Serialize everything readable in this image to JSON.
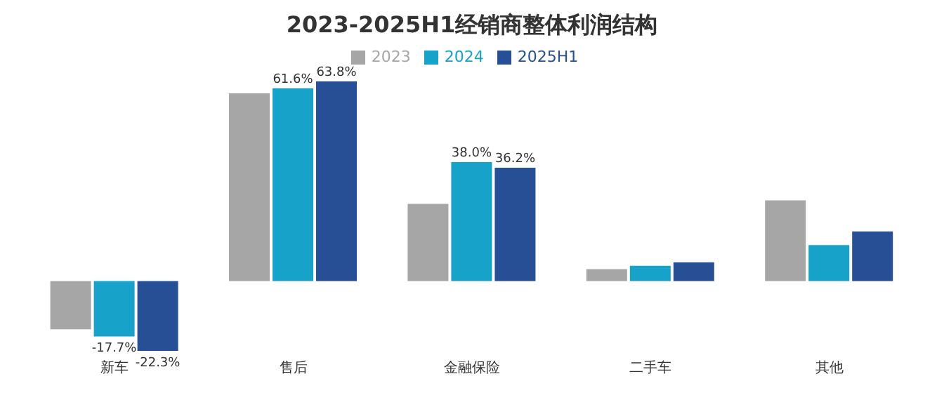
{
  "chart_data": {
    "type": "bar",
    "title": "2023-2025H1经销商整体利润结构",
    "categories": [
      "新车",
      "售后",
      "金融保险",
      "二手车",
      "其他"
    ],
    "series": [
      {
        "name": "2023",
        "color": "#a6a6a6",
        "values": [
          -15.4,
          60.0,
          24.7,
          3.8,
          25.8
        ]
      },
      {
        "name": "2024",
        "color": "#17a2c9",
        "values": [
          -17.7,
          61.6,
          38.0,
          4.9,
          11.5
        ],
        "value_labels": [
          "-17.7%",
          "61.6%",
          "38.0%",
          null,
          null
        ]
      },
      {
        "name": "2025H1",
        "color": "#264f96",
        "values": [
          -22.3,
          63.8,
          36.2,
          6.0,
          15.9
        ],
        "value_labels": [
          "-22.3%",
          "63.8%",
          "36.2%",
          null,
          null
        ]
      }
    ],
    "legend": "top",
    "tick_labels": "x",
    "grid": false
  }
}
